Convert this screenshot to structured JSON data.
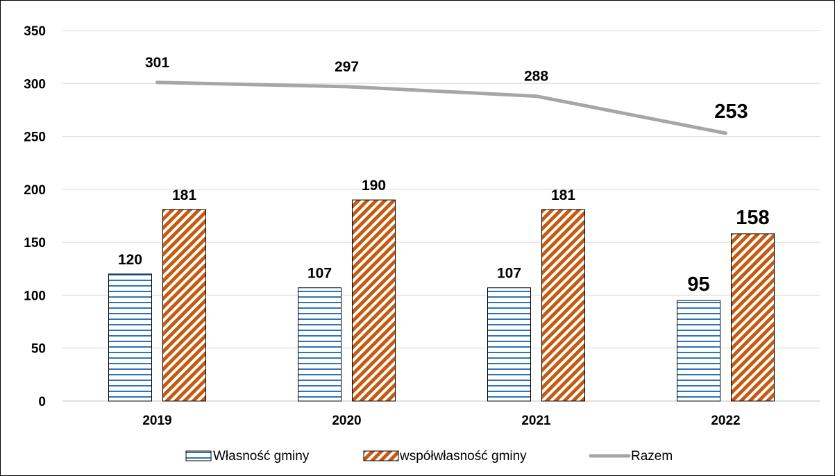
{
  "chart_data": {
    "type": "bar",
    "categories": [
      "2019",
      "2020",
      "2021",
      "2022"
    ],
    "series": [
      {
        "name": "Własność gminy",
        "type": "bar",
        "values": [
          120,
          107,
          107,
          95
        ],
        "color": "#2e75b6",
        "pattern": "horizontal-lines"
      },
      {
        "name": "współwłasność gminy",
        "type": "bar",
        "values": [
          181,
          190,
          181,
          158
        ],
        "color": "#c55a11",
        "pattern": "diagonal-stripes"
      },
      {
        "name": "Razem",
        "type": "line",
        "values": [
          301,
          297,
          288,
          253
        ],
        "color": "#a6a6a6"
      }
    ],
    "data_labels": {
      "series_0": [
        "120",
        "107",
        "107",
        "95"
      ],
      "series_1": [
        "181",
        "190",
        "181",
        "158"
      ],
      "series_2": [
        "301",
        "297",
        "288",
        "253"
      ]
    },
    "y_ticks": [
      "0",
      "50",
      "100",
      "150",
      "200",
      "250",
      "300",
      "350"
    ],
    "ylim": [
      0,
      350
    ],
    "grid": true,
    "legend": "bottom",
    "title": "",
    "xlabel": "",
    "ylabel": ""
  }
}
